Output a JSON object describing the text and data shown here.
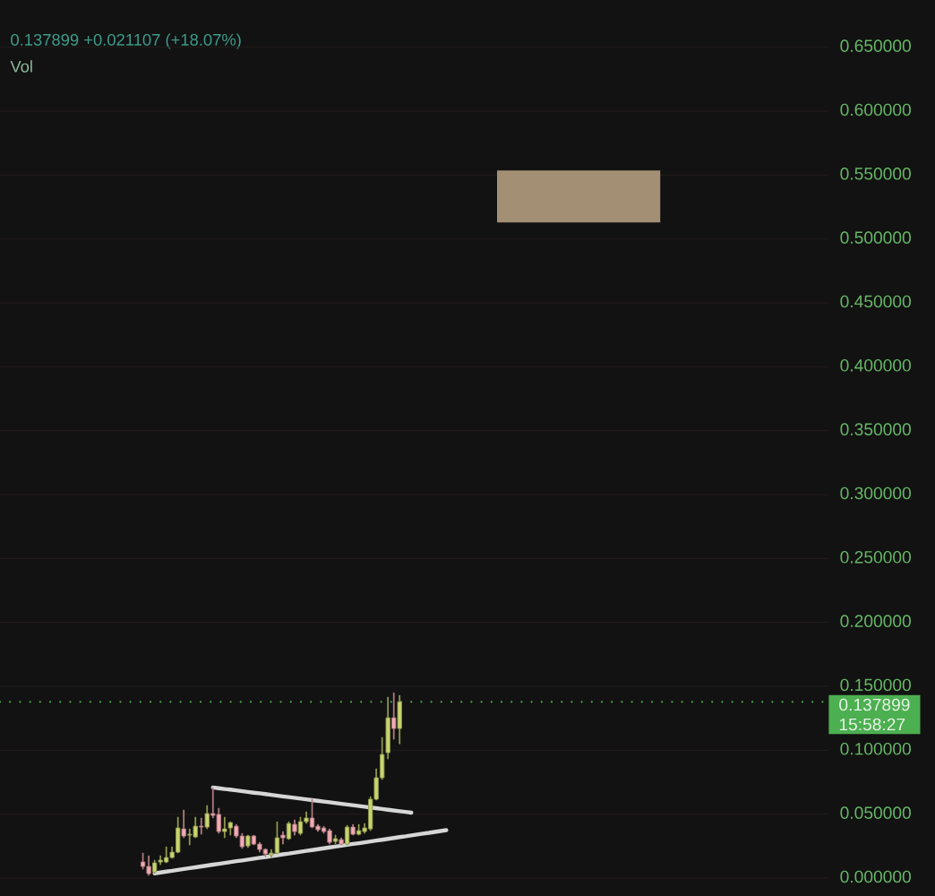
{
  "chart_data": {
    "type": "candlestick",
    "categories": [
      null,
      null,
      null,
      null,
      null,
      null,
      null,
      null,
      null,
      null,
      null,
      null,
      null,
      null,
      null,
      null,
      null,
      null,
      null,
      null,
      null,
      null,
      null,
      null,
      null,
      null,
      null,
      null,
      null,
      null,
      null,
      null,
      null,
      null,
      null,
      null,
      null,
      null,
      null,
      null,
      null,
      null,
      null,
      null,
      null,
      null,
      null,
      null,
      null,
      null,
      null,
      null,
      null,
      null,
      null,
      null,
      null,
      null,
      null,
      null,
      null,
      null,
      null,
      null,
      null,
      null,
      null,
      null,
      null,
      null,
      null,
      null,
      null,
      null,
      null,
      null,
      null,
      null,
      null,
      null,
      null,
      null,
      null,
      null,
      null,
      null,
      null,
      null,
      null,
      null,
      null,
      null,
      null,
      null,
      null,
      null,
      null,
      null,
      null,
      null,
      null,
      null,
      null,
      null,
      null,
      null,
      null,
      null,
      null,
      null,
      null,
      null,
      null,
      null,
      null,
      null,
      null,
      null,
      null,
      null,
      null,
      null,
      null,
      null,
      null,
      null,
      null,
      null,
      null,
      null,
      null,
      null,
      null,
      null,
      null,
      null,
      null,
      null,
      null,
      null,
      null,
      null
    ],
    "ohlc": [
      null,
      null,
      null,
      null,
      null,
      null,
      null,
      null,
      null,
      null,
      null,
      null,
      null,
      null,
      null,
      null,
      null,
      null,
      null,
      null,
      null,
      null,
      null,
      null,
      [
        0.0126,
        0.0196,
        0.007,
        0.0091
      ],
      [
        0.0091,
        0.0175,
        0.0021,
        0.0035
      ],
      [
        0.0049,
        0.014,
        0.0035,
        0.0119
      ],
      [
        0.0126,
        0.0175,
        0.0105,
        0.014
      ],
      [
        0.0126,
        0.0245,
        0.0119,
        0.0161
      ],
      [
        0.0161,
        0.0245,
        0.0154,
        0.0203
      ],
      [
        0.0203,
        0.0477,
        0.0196,
        0.0392
      ],
      [
        0.0385,
        0.0533,
        0.0315,
        0.0329
      ],
      [
        0.0336,
        0.0385,
        0.0259,
        0.0343
      ],
      [
        0.0322,
        0.0477,
        0.0315,
        0.0406
      ],
      [
        0.0406,
        0.047,
        0.0343,
        0.0399
      ],
      [
        0.0399,
        0.0568,
        0.0385,
        0.0505
      ],
      [
        0.0505,
        0.0708,
        0.047,
        0.049
      ],
      [
        0.0498,
        0.0547,
        0.035,
        0.0364
      ],
      [
        0.0364,
        0.0477,
        0.0315,
        0.0385
      ],
      [
        0.0392,
        0.0441,
        0.0336,
        0.0434
      ],
      [
        0.0406,
        0.042,
        0.0315,
        0.0329
      ],
      [
        0.0329,
        0.035,
        0.0231,
        0.0245
      ],
      [
        0.0252,
        0.0336,
        0.0238,
        0.0329
      ],
      [
        0.0329,
        0.0336,
        0.0259,
        0.0266
      ],
      [
        0.0266,
        0.028,
        0.0203,
        0.0224
      ],
      [
        0.0224,
        0.0231,
        0.0168,
        0.0189
      ],
      [
        0.0182,
        0.0224,
        0.0161,
        0.0196
      ],
      [
        0.0196,
        0.0441,
        0.0189,
        0.0315
      ],
      [
        0.0336,
        0.0364,
        0.0266,
        0.0315
      ],
      [
        0.0308,
        0.0441,
        0.0301,
        0.0427
      ],
      [
        0.042,
        0.0455,
        0.0336,
        0.0364
      ],
      [
        0.035,
        0.0477,
        0.0336,
        0.0441
      ],
      [
        0.0441,
        0.0519,
        0.0427,
        0.047
      ],
      [
        0.047,
        0.0617,
        0.0392,
        0.04
      ],
      [
        0.0406,
        0.042,
        0.0364,
        0.0378
      ],
      [
        0.0392,
        0.0406,
        0.035,
        0.0364
      ],
      [
        0.0371,
        0.0385,
        0.0266,
        0.028
      ],
      [
        0.0287,
        0.0336,
        0.0266,
        0.0308
      ],
      [
        0.0301,
        0.0315,
        0.0259,
        0.0266
      ],
      [
        0.0266,
        0.0413,
        0.0259,
        0.0399
      ],
      [
        0.0399,
        0.042,
        0.0336,
        0.0343
      ],
      [
        0.0343,
        0.042,
        0.0336,
        0.0371
      ],
      [
        0.0364,
        0.0427,
        0.035,
        0.0392
      ],
      [
        0.0385,
        0.0638,
        0.0371,
        0.0617
      ],
      [
        0.0617,
        0.0855,
        0.061,
        0.0785
      ],
      [
        0.0785,
        0.11,
        0.0771,
        0.0967
      ],
      [
        0.0981,
        0.1416,
        0.0932,
        0.1254
      ],
      [
        0.1254,
        0.145,
        0.1086,
        0.117
      ],
      [
        0.117,
        0.143,
        0.105,
        0.1379
      ],
      null,
      null,
      null,
      null,
      null,
      null,
      null,
      null,
      null,
      null,
      null,
      null,
      null,
      null,
      null,
      null,
      null,
      null,
      null,
      null,
      null,
      null,
      null,
      null,
      null,
      null,
      null,
      null,
      null,
      null,
      null,
      null,
      null,
      null,
      null,
      null,
      null,
      null,
      null,
      null,
      null,
      null,
      null,
      null,
      null,
      null,
      null,
      null,
      null,
      null,
      null,
      null,
      null,
      null,
      null,
      null,
      null,
      null,
      null,
      null,
      null,
      null,
      null,
      null,
      null,
      null,
      null,
      null,
      null,
      null,
      null,
      null,
      null
    ],
    "colors": [
      null,
      null,
      null,
      null,
      null,
      null,
      null,
      null,
      null,
      null,
      null,
      null,
      null,
      null,
      null,
      null,
      null,
      null,
      null,
      null,
      null,
      null,
      null,
      null,
      "#f2aab3",
      "#f2aab3",
      "#c8d46e",
      "#c8d46e",
      "#c8d46e",
      "#c8d46e",
      "#c8d46e",
      "#f2aab3",
      "#c8d46e",
      "#c8d46e",
      "#f2aab3",
      "#c8d46e",
      "#f2aab3",
      "#f2aab3",
      "#c8d46e",
      "#c8d46e",
      "#f2aab3",
      "#f2aab3",
      "#c8d46e",
      "#f2aab3",
      "#f2aab3",
      "#f2aab3",
      "#c8d46e",
      "#c8d46e",
      "#f2aab3",
      "#c8d46e",
      "#f2aab3",
      "#c8d46e",
      "#c8d46e",
      "#f2aab3",
      "#f2aab3",
      "#f2aab3",
      "#f2aab3",
      "#c8d46e",
      "#f2aab3",
      "#c8d46e",
      "#f2aab3",
      "#c8d46e",
      "#c8d46e",
      "#c8d46e",
      "#c8d46e",
      "#c8d46e",
      "#c8d46e",
      "#f2aab3",
      "#c8d46e",
      null,
      null,
      null,
      null,
      null,
      null,
      null,
      null,
      null,
      null,
      null,
      null,
      null,
      null,
      null,
      null,
      null,
      null,
      null,
      null,
      null,
      null,
      null,
      null,
      null,
      null,
      null,
      null,
      null,
      null,
      null,
      null,
      null,
      null,
      null,
      null,
      null,
      null,
      null,
      null,
      null,
      null,
      null,
      null,
      null,
      null,
      null,
      null,
      null,
      null,
      null,
      null,
      null,
      null,
      null,
      null,
      null,
      null,
      null,
      null,
      null,
      null,
      null,
      null,
      null,
      null,
      null,
      null,
      null,
      null,
      null,
      null,
      null
    ],
    "series": [
      {
        "type": "line",
        "color": "#d6d6d6",
        "values": [
          null,
          null,
          null,
          null,
          null,
          null,
          null,
          null,
          null,
          null,
          null,
          null,
          null,
          null,
          null,
          null,
          null,
          null,
          null,
          null,
          null,
          null,
          null,
          null,
          null,
          null,
          0.0037,
          0.0044,
          0.0051,
          0.0057,
          0.0064,
          0.0071,
          0.0078,
          0.0084,
          0.0091,
          0.0098,
          0.0105,
          0.0111,
          0.0118,
          0.0125,
          0.0132,
          0.0138,
          0.0145,
          0.0152,
          0.0159,
          0.0165,
          0.0172,
          0.0179,
          0.0186,
          0.0192,
          0.0199,
          0.0206,
          0.0213,
          0.0219,
          0.0226,
          0.0233,
          0.024,
          0.0246,
          0.0253,
          0.026,
          0.0267,
          0.0273,
          0.028,
          0.0287,
          0.0294,
          0.03,
          0.0307,
          0.0314,
          0.0321,
          0.0327,
          0.0334,
          0.0341,
          0.0348,
          0.0354,
          0.0361,
          0.0368,
          0.0375,
          null,
          null,
          null,
          null,
          null,
          null,
          null,
          null,
          null,
          null,
          null,
          null,
          null,
          null,
          null,
          null,
          null,
          null,
          null,
          null,
          null,
          null,
          null,
          null,
          null,
          null,
          null,
          null,
          null,
          null,
          null,
          null,
          null,
          null,
          null,
          null,
          null,
          null,
          null,
          null,
          null,
          null,
          null,
          null,
          null,
          null,
          null,
          null,
          null,
          null,
          null,
          null,
          null,
          null,
          null,
          null,
          null,
          null,
          null,
          null,
          null,
          null,
          null,
          null,
          null
        ]
      },
      {
        "type": "line",
        "color": "#d6d6d6",
        "values": [
          null,
          null,
          null,
          null,
          null,
          null,
          null,
          null,
          null,
          null,
          null,
          null,
          null,
          null,
          null,
          null,
          null,
          null,
          null,
          null,
          null,
          null,
          null,
          null,
          null,
          null,
          null,
          null,
          null,
          null,
          null,
          null,
          null,
          null,
          null,
          null,
          0.0709,
          0.0703,
          0.0697,
          0.0692,
          0.0686,
          0.068,
          0.0674,
          0.0668,
          0.0663,
          0.0657,
          0.0651,
          0.0645,
          0.0639,
          0.0634,
          0.0628,
          0.0622,
          0.0616,
          0.061,
          0.0605,
          0.0599,
          0.0593,
          0.0587,
          0.0581,
          0.0576,
          0.057,
          0.0564,
          0.0558,
          0.0552,
          0.0547,
          0.0541,
          0.0535,
          0.0529,
          0.0523,
          0.0518,
          0.0512,
          null,
          null,
          null,
          null,
          null,
          null,
          null,
          null,
          null,
          null,
          null,
          null,
          null,
          null,
          null,
          null,
          null,
          null,
          null,
          null,
          null,
          null,
          null,
          null,
          null,
          null,
          null,
          null,
          null,
          null,
          null,
          null,
          null,
          null,
          null,
          null,
          null,
          null,
          null,
          null,
          null,
          null,
          null,
          null,
          null,
          null,
          null,
          null,
          null,
          null,
          null,
          null,
          null,
          null,
          null,
          null,
          null,
          null,
          null,
          null,
          null,
          null,
          null,
          null,
          null,
          null,
          null,
          null,
          null,
          null,
          null
        ]
      }
    ],
    "ylim": [
      -0.014,
      0.687
    ],
    "yticks": [
      {
        "value": 0,
        "label": "0.000000"
      },
      {
        "value": 0.05,
        "label": "0.050000"
      },
      {
        "value": 0.1,
        "label": "0.100000"
      },
      {
        "value": 0.15,
        "label": "0.150000"
      },
      {
        "value": 0.2,
        "label": "0.200000"
      },
      {
        "value": 0.25,
        "label": "0.250000"
      },
      {
        "value": 0.3,
        "label": "0.300000"
      },
      {
        "value": 0.35,
        "label": "0.350000"
      },
      {
        "value": 0.4,
        "label": "0.400000"
      },
      {
        "value": 0.45,
        "label": "0.450000"
      },
      {
        "value": 0.5,
        "label": "0.500000"
      },
      {
        "value": 0.55,
        "label": "0.550000"
      },
      {
        "value": 0.6,
        "label": "0.600000"
      },
      {
        "value": 0.65,
        "label": "0.650000"
      }
    ],
    "grid": "y",
    "ref_lines": [
      {
        "axis": "y",
        "value": 0.137899,
        "label": "0.137899",
        "color": "#4caf50",
        "line_style": "dotted"
      }
    ],
    "bands": [
      {
        "axis": "y",
        "from": 0.513,
        "to": 0.5536,
        "color": "#a38f74"
      }
    ],
    "annotations": [
      "0.137899 +0.021107 (+18.07%)",
      "Vol",
      "15:58:27"
    ]
  }
}
